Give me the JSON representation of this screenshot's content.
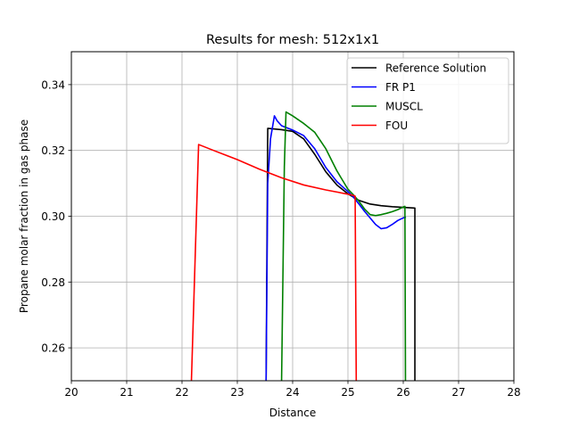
{
  "chart_data": {
    "type": "line",
    "title": "Results for mesh: 512x1x1",
    "xlabel": "Distance",
    "ylabel": "Propane molar fraction in gas phase",
    "xlim": [
      20,
      28
    ],
    "ylim": [
      0.25,
      0.35
    ],
    "xticks": [
      "20",
      "21",
      "22",
      "23",
      "24",
      "25",
      "26",
      "27",
      "28"
    ],
    "yticks": [
      "0.26",
      "0.28",
      "0.30",
      "0.32",
      "0.34"
    ],
    "grid": true,
    "legend": "top-right",
    "series": [
      {
        "name": "Reference Solution",
        "color": "#000000",
        "x": [
          23.52,
          23.55,
          23.8,
          24.0,
          24.2,
          24.4,
          24.6,
          24.8,
          25.0,
          25.2,
          25.4,
          25.6,
          25.8,
          26.0,
          26.2,
          26.21,
          26.21
        ],
        "y": [
          0.25,
          0.3267,
          0.3263,
          0.3258,
          0.3235,
          0.3188,
          0.3135,
          0.3095,
          0.3068,
          0.3048,
          0.3037,
          0.3032,
          0.3029,
          0.3027,
          0.3025,
          0.3025,
          0.25
        ]
      },
      {
        "name": "FR P1",
        "color": "#0000ff",
        "x": [
          23.52,
          23.55,
          23.6,
          23.67,
          23.72,
          23.8,
          24.0,
          24.2,
          24.4,
          24.6,
          24.8,
          25.0,
          25.1,
          25.2,
          25.3,
          25.4,
          25.5,
          25.6,
          25.7,
          25.8,
          25.9,
          26.0,
          26.05
        ],
        "y": [
          0.25,
          0.31,
          0.3235,
          0.3305,
          0.329,
          0.3275,
          0.3262,
          0.3245,
          0.3205,
          0.3148,
          0.3105,
          0.3075,
          0.3058,
          0.3037,
          0.3015,
          0.2995,
          0.2975,
          0.2962,
          0.2965,
          0.2975,
          0.2987,
          0.2995,
          0.2997
        ]
      },
      {
        "name": "MUSCL",
        "color": "#008000",
        "x": [
          23.8,
          23.85,
          23.88,
          24.0,
          24.2,
          24.4,
          24.6,
          24.8,
          25.0,
          25.1,
          25.2,
          25.3,
          25.4,
          25.5,
          25.6,
          25.7,
          25.8,
          25.9,
          26.0,
          26.03,
          26.04
        ],
        "y": [
          0.25,
          0.315,
          0.3317,
          0.3305,
          0.3282,
          0.3255,
          0.3205,
          0.3138,
          0.3082,
          0.3065,
          0.3045,
          0.3022,
          0.3005,
          0.3002,
          0.3005,
          0.3009,
          0.3014,
          0.302,
          0.3028,
          0.303,
          0.25
        ]
      },
      {
        "name": "FOU",
        "color": "#ff0000",
        "x": [
          22.17,
          22.3,
          22.6,
          23.0,
          23.4,
          23.8,
          24.2,
          24.6,
          25.0,
          25.1,
          25.13,
          25.15
        ],
        "y": [
          0.25,
          0.3218,
          0.3198,
          0.3172,
          0.3143,
          0.3117,
          0.3095,
          0.308,
          0.3067,
          0.3063,
          0.3061,
          0.25
        ]
      }
    ]
  }
}
